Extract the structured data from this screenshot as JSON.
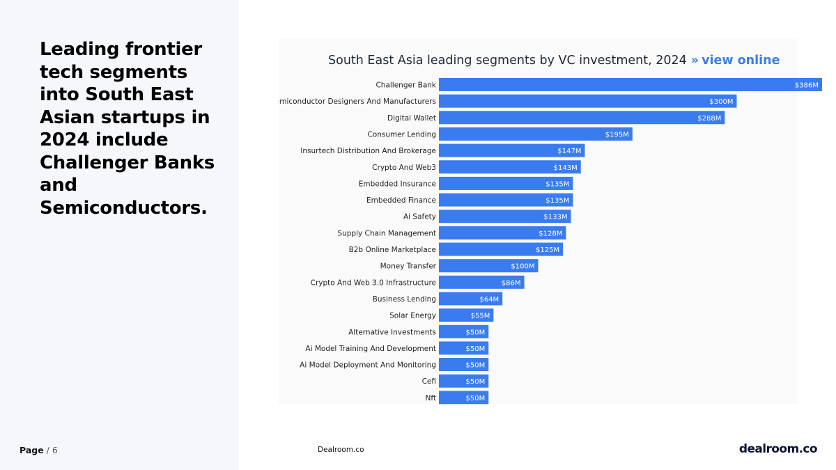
{
  "headline": "Leading frontier tech segments into South East Asian startups in 2024 include Challenger Banks and Semiconductors.",
  "chart_title": "South East Asia leading segments by VC investment, 2024",
  "chart_link_separator": "»",
  "chart_link": "view online",
  "footer": {
    "page_word": "Page",
    "page_rest": " / 6",
    "source": "Dealroom.co",
    "logo": "dealroom.co"
  },
  "colors": {
    "bar": "#3a7cf0",
    "link": "#3b7fe0",
    "left_panel": "#f6f7fb"
  },
  "chart_data": {
    "type": "bar",
    "orientation": "horizontal",
    "title": "South East Asia leading segments by VC investment, 2024",
    "categories": [
      "Challenger Bank",
      "Semiconductor Designers And Manufacturers",
      "Digital Wallet",
      "Consumer Lending",
      "Insurtech Distribution And Brokerage",
      "Crypto And Web3",
      "Embedded Insurance",
      "Embedded Finance",
      "Ai Safety",
      "Supply Chain Management",
      "B2b Online Marketplace",
      "Money Transfer",
      "Crypto And Web 3.0 Infrastructure",
      "Business Lending",
      "Solar Energy",
      "Alternative Investments",
      "Ai Model Training And Development",
      "Ai Model Deployment And Monitoring",
      "Cefi",
      "Nft"
    ],
    "values": [
      386,
      300,
      288,
      195,
      147,
      143,
      135,
      135,
      133,
      128,
      125,
      100,
      86,
      64,
      55,
      50,
      50,
      50,
      50,
      50
    ],
    "value_labels": [
      "$386M",
      "$300M",
      "$288M",
      "$195M",
      "$147M",
      "$143M",
      "$135M",
      "$135M",
      "$133M",
      "$128M",
      "$125M",
      "$100M",
      "$86M",
      "$64M",
      "$55M",
      "$50M",
      "$50M",
      "$50M",
      "$50M",
      "$50M"
    ],
    "unit": "$M",
    "xlim": [
      0,
      386
    ],
    "grid": false,
    "legend": "none"
  }
}
